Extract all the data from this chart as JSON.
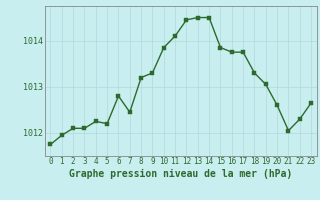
{
  "x": [
    0,
    1,
    2,
    3,
    4,
    5,
    6,
    7,
    8,
    9,
    10,
    11,
    12,
    13,
    14,
    15,
    16,
    17,
    18,
    19,
    20,
    21,
    22,
    23
  ],
  "y": [
    1011.75,
    1011.95,
    1012.1,
    1012.1,
    1012.25,
    1012.2,
    1012.8,
    1012.45,
    1013.2,
    1013.3,
    1013.85,
    1014.1,
    1014.45,
    1014.5,
    1014.5,
    1013.85,
    1013.75,
    1013.75,
    1013.3,
    1013.05,
    1012.6,
    1012.05,
    1012.3,
    1012.65
  ],
  "line_color": "#2d6a2d",
  "marker_color": "#2d6a2d",
  "bg_color": "#c8eef0",
  "grid_color": "#b0d8da",
  "axis_color": "#2d6a2d",
  "xlabel": "Graphe pression niveau de la mer (hPa)",
  "xlabel_fontsize": 7,
  "yticks": [
    1012,
    1013,
    1014
  ],
  "ylim": [
    1011.5,
    1014.75
  ],
  "xlim": [
    -0.5,
    23.5
  ],
  "xtick_labels": [
    "0",
    "1",
    "2",
    "3",
    "4",
    "5",
    "6",
    "7",
    "8",
    "9",
    "10",
    "11",
    "12",
    "13",
    "14",
    "15",
    "16",
    "17",
    "18",
    "19",
    "20",
    "21",
    "22",
    "23"
  ],
  "tick_fontsize": 6,
  "line_width": 1.0,
  "marker_size": 2.5
}
